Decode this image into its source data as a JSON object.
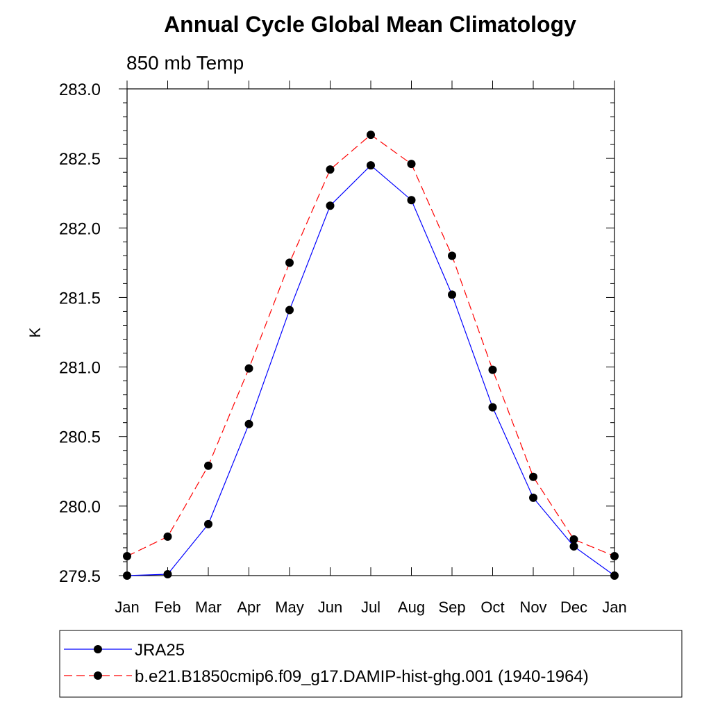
{
  "chart_data": {
    "type": "line",
    "title": "Annual Cycle Global Mean Climatology",
    "subtitle": "850 mb Temp",
    "ylabel": "K",
    "xlabel": "",
    "categories": [
      "Jan",
      "Feb",
      "Mar",
      "Apr",
      "May",
      "Jun",
      "Jul",
      "Aug",
      "Sep",
      "Oct",
      "Nov",
      "Dec",
      "Jan"
    ],
    "ylim": [
      279.5,
      283.0
    ],
    "yticks": [
      "279.5",
      "280.0",
      "280.5",
      "281.0",
      "281.5",
      "282.0",
      "282.5",
      "283.0"
    ],
    "series": [
      {
        "name": "JRA25",
        "color": "#0000ff",
        "dash": "solid",
        "values": [
          279.5,
          279.51,
          279.87,
          280.59,
          281.41,
          282.16,
          282.45,
          282.2,
          281.52,
          280.71,
          280.06,
          279.71,
          279.5
        ]
      },
      {
        "name": "b.e21.B1850cmip6.f09_g17.DAMIP-hist-ghg.001 (1940-1964)",
        "color": "#ff0000",
        "dash": "dashed",
        "values": [
          279.64,
          279.78,
          280.29,
          280.99,
          281.75,
          282.42,
          282.67,
          282.46,
          281.8,
          280.98,
          280.21,
          279.76,
          279.64
        ]
      }
    ],
    "grid": false,
    "legend_position": "bottom"
  }
}
